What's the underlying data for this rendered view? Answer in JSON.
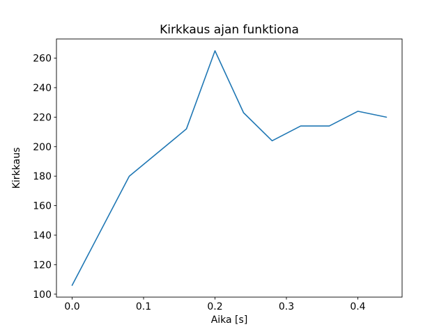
{
  "figure": {
    "background_color": "#ffffff",
    "frame_color": "#000000",
    "text_color": "#000000"
  },
  "chart_data": {
    "type": "line",
    "title": "Kirkkaus ajan funktiona",
    "xlabel": "Aika [s]",
    "ylabel": "Kirkkaus",
    "grid": false,
    "legend_position": "none",
    "xlim": [
      -0.022,
      0.462
    ],
    "ylim": [
      98,
      273
    ],
    "xticks": {
      "values": [
        0.0,
        0.1,
        0.2,
        0.3,
        0.4
      ],
      "labels": [
        "0.0",
        "0.1",
        "0.2",
        "0.3",
        "0.4"
      ]
    },
    "yticks": {
      "values": [
        100,
        120,
        140,
        160,
        180,
        200,
        220,
        240,
        260
      ],
      "labels": [
        "100",
        "120",
        "140",
        "160",
        "180",
        "200",
        "220",
        "240",
        "260"
      ]
    },
    "series": [
      {
        "name": "kirkkaus-line",
        "color": "#1f77b4",
        "x": [
          0.0,
          0.08,
          0.16,
          0.2,
          0.24,
          0.28,
          0.32,
          0.36,
          0.4,
          0.44
        ],
        "y": [
          106,
          180,
          212,
          265,
          223,
          204,
          214,
          214,
          224,
          220
        ]
      }
    ]
  }
}
